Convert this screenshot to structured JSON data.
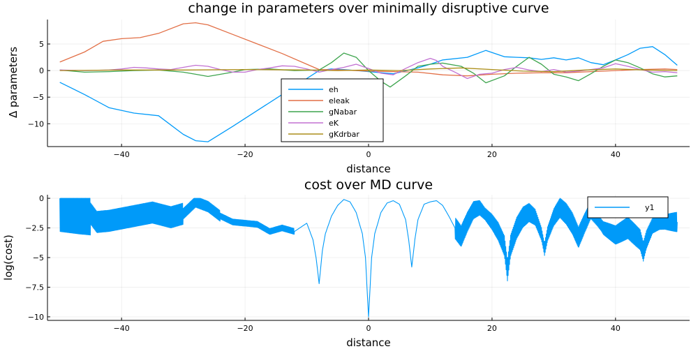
{
  "chart_data": [
    {
      "type": "line",
      "title": "change in parameters over minimally disruptive curve",
      "xlabel": "distance",
      "ylabel": "Δ parameters",
      "xlim": [
        -52,
        52
      ],
      "ylim": [
        -14.3,
        9.6
      ],
      "xticks": [
        -40,
        -20,
        0,
        20,
        40
      ],
      "yticks": [
        -10,
        -5,
        0,
        5
      ],
      "grid": true,
      "legend": "bottom-center",
      "series": [
        {
          "name": "eh",
          "color": "#009AF9",
          "x": [
            -50,
            -46,
            -42,
            -38,
            -34,
            -30,
            -28,
            -26,
            -22,
            -18,
            -14,
            -10,
            -8,
            -6,
            -4,
            0,
            4,
            8,
            10,
            12,
            16,
            19,
            20,
            22,
            24,
            26,
            28,
            30,
            32,
            34,
            36,
            38,
            40,
            42,
            44,
            46,
            48,
            50
          ],
          "y": [
            -2.2,
            -4.5,
            -7.0,
            -8.0,
            -8.5,
            -12.0,
            -13.2,
            -13.4,
            -10.5,
            -7.5,
            -4.5,
            -1.5,
            0,
            0.3,
            0.2,
            -0.2,
            -0.6,
            0.5,
            1.2,
            2.0,
            2.5,
            3.8,
            3.4,
            2.6,
            2.5,
            2.4,
            2.1,
            2.4,
            2.0,
            2.4,
            1.5,
            1.1,
            2.0,
            3.0,
            4.2,
            4.5,
            3.0,
            1.0
          ]
        },
        {
          "name": "eleak",
          "color": "#E26F46",
          "x": [
            -50,
            -46,
            -43,
            -40,
            -37,
            -34,
            -30,
            -28,
            -26,
            -22,
            -18,
            -14,
            -10,
            -8,
            -4,
            0,
            4,
            8,
            12,
            16,
            20,
            24,
            28,
            32,
            36,
            40,
            44,
            48,
            50
          ],
          "y": [
            1.6,
            3.5,
            5.5,
            6.0,
            6.2,
            7.0,
            8.8,
            9.0,
            8.6,
            6.8,
            5.0,
            3.2,
            1.2,
            0.2,
            0.1,
            -0.1,
            -0.2,
            -0.3,
            -0.8,
            -1.0,
            -0.7,
            -0.5,
            -0.4,
            -0.4,
            -0.2,
            0,
            0.2,
            0.3,
            0.2
          ]
        },
        {
          "name": "gNabar",
          "color": "#3DA44D",
          "x": [
            -50,
            -46,
            -42,
            -38,
            -34,
            -30,
            -28,
            -26,
            -22,
            -20,
            -16,
            -12,
            -8,
            -6,
            -4,
            -2,
            0,
            2,
            3.5,
            6,
            8,
            10,
            12,
            15,
            17,
            19,
            22,
            24,
            26,
            28,
            30,
            32,
            34,
            36,
            38,
            40,
            42,
            44,
            46,
            48,
            50
          ],
          "y": [
            0.1,
            -0.3,
            -0.2,
            0,
            0.1,
            -0.3,
            -0.7,
            -1.1,
            -0.3,
            0.2,
            0.3,
            0,
            0.1,
            1.5,
            3.3,
            2.5,
            0,
            -2.0,
            -3.1,
            -1.0,
            0.8,
            1.2,
            1.4,
            0.8,
            -0.5,
            -2.3,
            -1.0,
            0.8,
            2.5,
            1.2,
            -0.7,
            -1.2,
            -1.9,
            -0.6,
            0.8,
            2.0,
            1.5,
            0.5,
            -0.6,
            -1.2,
            -1.0
          ]
        },
        {
          "name": "eK",
          "color": "#C271D2",
          "x": [
            -50,
            -46,
            -42,
            -40,
            -38,
            -36,
            -34,
            -32,
            -30,
            -28,
            -26,
            -24,
            -22,
            -20,
            -18,
            -16,
            -14,
            -12,
            -10,
            -8,
            -6,
            -4,
            -2,
            0,
            2,
            4,
            6,
            8,
            10,
            11,
            12,
            14,
            16,
            18,
            20,
            22,
            24,
            26,
            28,
            30,
            32,
            34,
            36,
            38,
            40,
            42,
            44,
            46,
            48,
            50
          ],
          "y": [
            0.1,
            0.0,
            0.1,
            0.3,
            0.6,
            0.5,
            0.3,
            0.2,
            0.6,
            1.0,
            0.8,
            0.2,
            -0.3,
            -0.3,
            0.2,
            0.5,
            0.9,
            0.8,
            0.3,
            -0.3,
            0.2,
            0.6,
            1.2,
            0.4,
            -0.5,
            -0.8,
            0.4,
            1.5,
            2.3,
            1.9,
            0.8,
            -0.3,
            -1.5,
            -0.7,
            -0.5,
            0.2,
            0.6,
            0.1,
            -0.2,
            0.2,
            -0.3,
            -0.1,
            0.2,
            0.5,
            1.3,
            0.8,
            0.2,
            -0.3,
            -0.2,
            -0.4
          ]
        },
        {
          "name": "gKdrbar",
          "color": "#AC8E18",
          "x": [
            -50,
            -40,
            -30,
            -20,
            -10,
            -5,
            0,
            5,
            10,
            15,
            20,
            25,
            30,
            35,
            40,
            45,
            50
          ],
          "y": [
            0,
            0.1,
            0.1,
            0.2,
            0.1,
            0,
            0.1,
            0,
            0.3,
            0.5,
            0.2,
            -0.1,
            -0.2,
            0.1,
            0.3,
            0.1,
            0
          ]
        }
      ]
    },
    {
      "type": "line",
      "title": "cost over MD curve",
      "xlabel": "distance",
      "ylabel": "log(cost)",
      "xlim": [
        -52,
        52
      ],
      "ylim": [
        -10.3,
        0.3
      ],
      "xticks": [
        -40,
        -20,
        0,
        20,
        40
      ],
      "yticks": [
        0.0,
        -2.5,
        -5.0,
        -7.5,
        -10.0
      ],
      "grid": true,
      "legend": "top-right",
      "series": [
        {
          "name": "y1",
          "color": "#009AF9",
          "x": [
            -50,
            -47,
            -45,
            -44,
            -42,
            -38,
            -35,
            -32,
            -30,
            -28,
            -26,
            -24,
            -22,
            -20,
            -18,
            -16,
            -14,
            -12,
            -10,
            -9,
            -8.5,
            -8,
            -7.5,
            -7,
            -6,
            -5,
            -4,
            -3,
            -2,
            -1,
            -0.5,
            0,
            0.5,
            1,
            2,
            3,
            4,
            5,
            6,
            6.5,
            7,
            7.5,
            8,
            9,
            10,
            11,
            12,
            13,
            14,
            15,
            16,
            17,
            18,
            19,
            20,
            21,
            22,
            22.5,
            23,
            24,
            25,
            26,
            27,
            28,
            28.5,
            29,
            30,
            31,
            32,
            33,
            34,
            35,
            36,
            37,
            38,
            40,
            42,
            44,
            44.5,
            45,
            46,
            48,
            50
          ],
          "y": [
            -1.0,
            -1.2,
            -1.3,
            -2.0,
            -1.9,
            -1.5,
            -1.2,
            -1.6,
            -1.3,
            -0.3,
            -0.7,
            -1.5,
            -2.0,
            -2.1,
            -2.2,
            -2.8,
            -2.5,
            -2.8,
            -2.1,
            -3.5,
            -5.0,
            -7.2,
            -4.5,
            -3.0,
            -1.5,
            -0.6,
            -0.1,
            -0.3,
            -1.2,
            -3.0,
            -5.0,
            -10.0,
            -5.0,
            -3.0,
            -1.2,
            -0.4,
            -0.2,
            -0.5,
            -1.8,
            -3.5,
            -5.8,
            -3.5,
            -1.8,
            -0.5,
            -0.3,
            -0.2,
            -0.6,
            -1.5,
            -2.5,
            -3.2,
            -2.0,
            -1.0,
            -0.8,
            -1.4,
            -2.0,
            -2.8,
            -4.0,
            -6.1,
            -4.0,
            -2.5,
            -1.6,
            -1.2,
            -1.6,
            -3.0,
            -4.3,
            -3.0,
            -1.6,
            -0.8,
            -1.3,
            -2.1,
            -3.3,
            -2.1,
            -1.0,
            -1.7,
            -2.5,
            -3.1,
            -2.5,
            -3.5,
            -4.5,
            -3.5,
            -2.3,
            -2.0,
            -2.0
          ]
        }
      ]
    }
  ]
}
